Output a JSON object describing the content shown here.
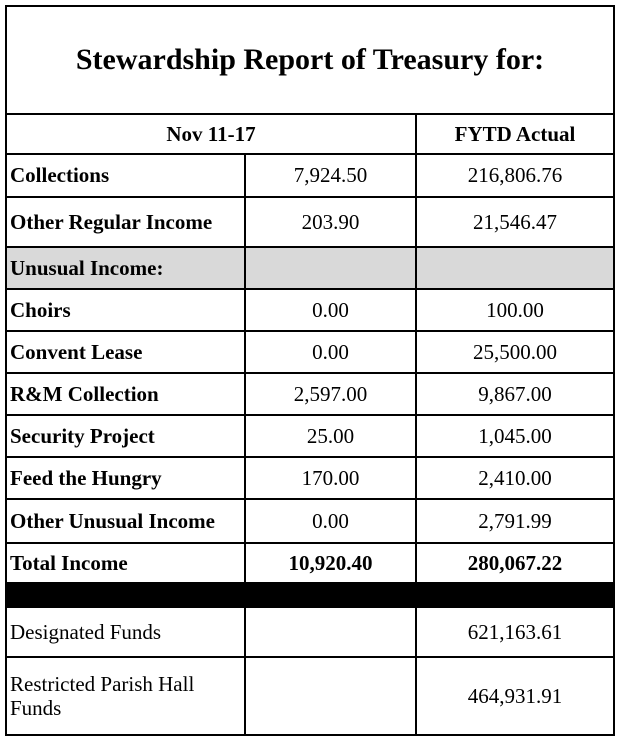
{
  "title": "Stewardship Report of Treasury for:",
  "header": {
    "period": "Nov 11-17",
    "ytd": "FYTD Actual"
  },
  "rows": [
    {
      "label": "Collections",
      "week": "7,924.50",
      "ytd": "216,806.76"
    },
    {
      "label": "Other Regular Income",
      "week": "203.90",
      "ytd": "21,546.47"
    },
    {
      "label": "Unusual Income:"
    },
    {
      "label": "Choirs",
      "week": "0.00",
      "ytd": "100.00"
    },
    {
      "label": "Convent Lease",
      "week": "0.00",
      "ytd": "25,500.00"
    },
    {
      "label": "R&M Collection",
      "week": "2,597.00",
      "ytd": "9,867.00"
    },
    {
      "label": "Security Project",
      "week": "25.00",
      "ytd": "1,045.00"
    },
    {
      "label": "Feed the Hungry",
      "week": "170.00",
      "ytd": "2,410.00"
    },
    {
      "label": "Other Unusual Income",
      "week": "0.00",
      "ytd": "2,791.99"
    },
    {
      "label": "Total Income",
      "week": "10,920.40",
      "ytd": "280,067.22"
    },
    {
      "label": "Designated Funds",
      "ytd": "621,163.61"
    },
    {
      "label": "Restricted Parish Hall Funds",
      "ytd": "464,931.91"
    }
  ]
}
